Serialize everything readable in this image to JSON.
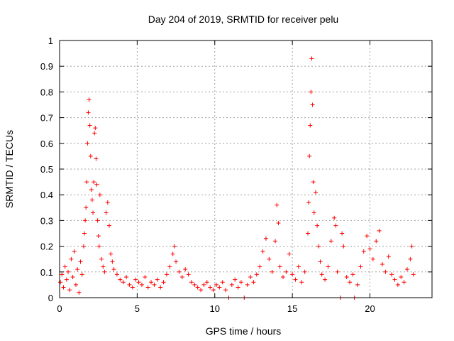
{
  "chart_data": {
    "type": "scatter",
    "title": "Day 204 of 2019, SRMTID for receiver pelu",
    "xlabel": "GPS time / hours",
    "ylabel": "SRMTID / TECUs",
    "xlim": [
      0,
      24
    ],
    "ylim": [
      0,
      1
    ],
    "xticks": [
      0,
      5,
      10,
      15,
      20
    ],
    "xtick_labels": [
      "0",
      "5",
      "10",
      "15",
      "20"
    ],
    "yticks": [
      0,
      0.1,
      0.2,
      0.3,
      0.4,
      0.5,
      0.6,
      0.7,
      0.8,
      0.9,
      1
    ],
    "ytick_labels": [
      "0",
      "0.1",
      "0.2",
      "0.3",
      "0.4",
      "0.5",
      "0.6",
      "0.7",
      "0.8",
      "0.9",
      "1"
    ],
    "grid": true,
    "marker": "+",
    "series": [
      {
        "name": "SRMTID",
        "color": "#ff0000",
        "points": [
          [
            0.05,
            0.06
          ],
          [
            0.15,
            0.09
          ],
          [
            0.25,
            0.04
          ],
          [
            0.35,
            0.12
          ],
          [
            0.45,
            0.07
          ],
          [
            0.55,
            0.1
          ],
          [
            0.65,
            0.03
          ],
          [
            0.75,
            0.15
          ],
          [
            0.85,
            0.08
          ],
          [
            0.95,
            0.18
          ],
          [
            1.05,
            0.05
          ],
          [
            1.15,
            0.11
          ],
          [
            1.25,
            0.02
          ],
          [
            1.35,
            0.14
          ],
          [
            1.45,
            0.09
          ],
          [
            1.55,
            0.2
          ],
          [
            1.6,
            0.25
          ],
          [
            1.65,
            0.3
          ],
          [
            1.7,
            0.35
          ],
          [
            1.75,
            0.45
          ],
          [
            1.8,
            0.6
          ],
          [
            1.85,
            0.72
          ],
          [
            1.9,
            0.77
          ],
          [
            1.95,
            0.67
          ],
          [
            2.0,
            0.55
          ],
          [
            2.05,
            0.42
          ],
          [
            2.1,
            0.38
          ],
          [
            2.15,
            0.33
          ],
          [
            2.2,
            0.45
          ],
          [
            2.25,
            0.64
          ],
          [
            2.3,
            0.66
          ],
          [
            2.35,
            0.54
          ],
          [
            2.4,
            0.44
          ],
          [
            2.45,
            0.3
          ],
          [
            2.5,
            0.24
          ],
          [
            2.55,
            0.2
          ],
          [
            2.6,
            0.4
          ],
          [
            2.7,
            0.15
          ],
          [
            2.8,
            0.12
          ],
          [
            2.9,
            0.1
          ],
          [
            3.0,
            0.33
          ],
          [
            3.1,
            0.37
          ],
          [
            3.2,
            0.28
          ],
          [
            3.3,
            0.17
          ],
          [
            3.4,
            0.14
          ],
          [
            3.5,
            0.11
          ],
          [
            3.7,
            0.09
          ],
          [
            3.9,
            0.07
          ],
          [
            4.1,
            0.06
          ],
          [
            4.3,
            0.08
          ],
          [
            4.5,
            0.05
          ],
          [
            4.7,
            0.04
          ],
          [
            4.9,
            0.07
          ],
          [
            5.1,
            0.06
          ],
          [
            5.3,
            0.05
          ],
          [
            5.5,
            0.08
          ],
          [
            5.7,
            0.04
          ],
          [
            5.9,
            0.06
          ],
          [
            6.1,
            0.05
          ],
          [
            6.3,
            0.07
          ],
          [
            6.5,
            0.04
          ],
          [
            6.7,
            0.06
          ],
          [
            6.9,
            0.09
          ],
          [
            7.1,
            0.12
          ],
          [
            7.3,
            0.17
          ],
          [
            7.4,
            0.2
          ],
          [
            7.5,
            0.14
          ],
          [
            7.7,
            0.1
          ],
          [
            7.9,
            0.08
          ],
          [
            8.1,
            0.11
          ],
          [
            8.3,
            0.09
          ],
          [
            8.5,
            0.06
          ],
          [
            8.7,
            0.05
          ],
          [
            8.9,
            0.04
          ],
          [
            9.1,
            0.03
          ],
          [
            9.3,
            0.05
          ],
          [
            9.5,
            0.06
          ],
          [
            9.7,
            0.04
          ],
          [
            9.9,
            0.03
          ],
          [
            10.1,
            0.05
          ],
          [
            10.3,
            0.04
          ],
          [
            10.5,
            0.06
          ],
          [
            10.7,
            0.03
          ],
          [
            10.9,
            0.0
          ],
          [
            11.1,
            0.05
          ],
          [
            11.3,
            0.07
          ],
          [
            11.5,
            0.04
          ],
          [
            11.7,
            0.06
          ],
          [
            11.9,
            0.0
          ],
          [
            12.1,
            0.05
          ],
          [
            12.3,
            0.08
          ],
          [
            12.5,
            0.06
          ],
          [
            12.7,
            0.09
          ],
          [
            12.9,
            0.12
          ],
          [
            13.1,
            0.18
          ],
          [
            13.3,
            0.23
          ],
          [
            13.5,
            0.15
          ],
          [
            13.7,
            0.1
          ],
          [
            13.9,
            0.22
          ],
          [
            14.0,
            0.36
          ],
          [
            14.1,
            0.29
          ],
          [
            14.2,
            0.12
          ],
          [
            14.4,
            0.08
          ],
          [
            14.6,
            0.1
          ],
          [
            14.8,
            0.17
          ],
          [
            15.0,
            0.09
          ],
          [
            15.2,
            0.07
          ],
          [
            15.4,
            0.12
          ],
          [
            15.6,
            0.06
          ],
          [
            15.8,
            0.1
          ],
          [
            16.0,
            0.25
          ],
          [
            16.05,
            0.37
          ],
          [
            16.1,
            0.55
          ],
          [
            16.15,
            0.67
          ],
          [
            16.2,
            0.8
          ],
          [
            16.25,
            0.93
          ],
          [
            16.3,
            0.75
          ],
          [
            16.35,
            0.45
          ],
          [
            16.4,
            0.33
          ],
          [
            16.5,
            0.41
          ],
          [
            16.6,
            0.28
          ],
          [
            16.7,
            0.2
          ],
          [
            16.8,
            0.14
          ],
          [
            16.9,
            0.09
          ],
          [
            17.1,
            0.07
          ],
          [
            17.3,
            0.12
          ],
          [
            17.5,
            0.22
          ],
          [
            17.7,
            0.31
          ],
          [
            17.8,
            0.28
          ],
          [
            17.9,
            0.1
          ],
          [
            18.1,
            0.0
          ],
          [
            18.2,
            0.25
          ],
          [
            18.3,
            0.2
          ],
          [
            18.5,
            0.08
          ],
          [
            18.7,
            0.06
          ],
          [
            18.9,
            0.09
          ],
          [
            19.0,
            0.0
          ],
          [
            19.2,
            0.05
          ],
          [
            19.4,
            0.12
          ],
          [
            19.6,
            0.18
          ],
          [
            19.8,
            0.24
          ],
          [
            20.0,
            0.19
          ],
          [
            20.2,
            0.15
          ],
          [
            20.4,
            0.22
          ],
          [
            20.6,
            0.26
          ],
          [
            20.8,
            0.13
          ],
          [
            21.0,
            0.1
          ],
          [
            21.2,
            0.16
          ],
          [
            21.4,
            0.09
          ],
          [
            21.6,
            0.07
          ],
          [
            21.8,
            0.05
          ],
          [
            22.0,
            0.08
          ],
          [
            22.2,
            0.06
          ],
          [
            22.4,
            0.11
          ],
          [
            22.6,
            0.15
          ],
          [
            22.7,
            0.2
          ],
          [
            22.8,
            0.09
          ]
        ]
      }
    ]
  }
}
